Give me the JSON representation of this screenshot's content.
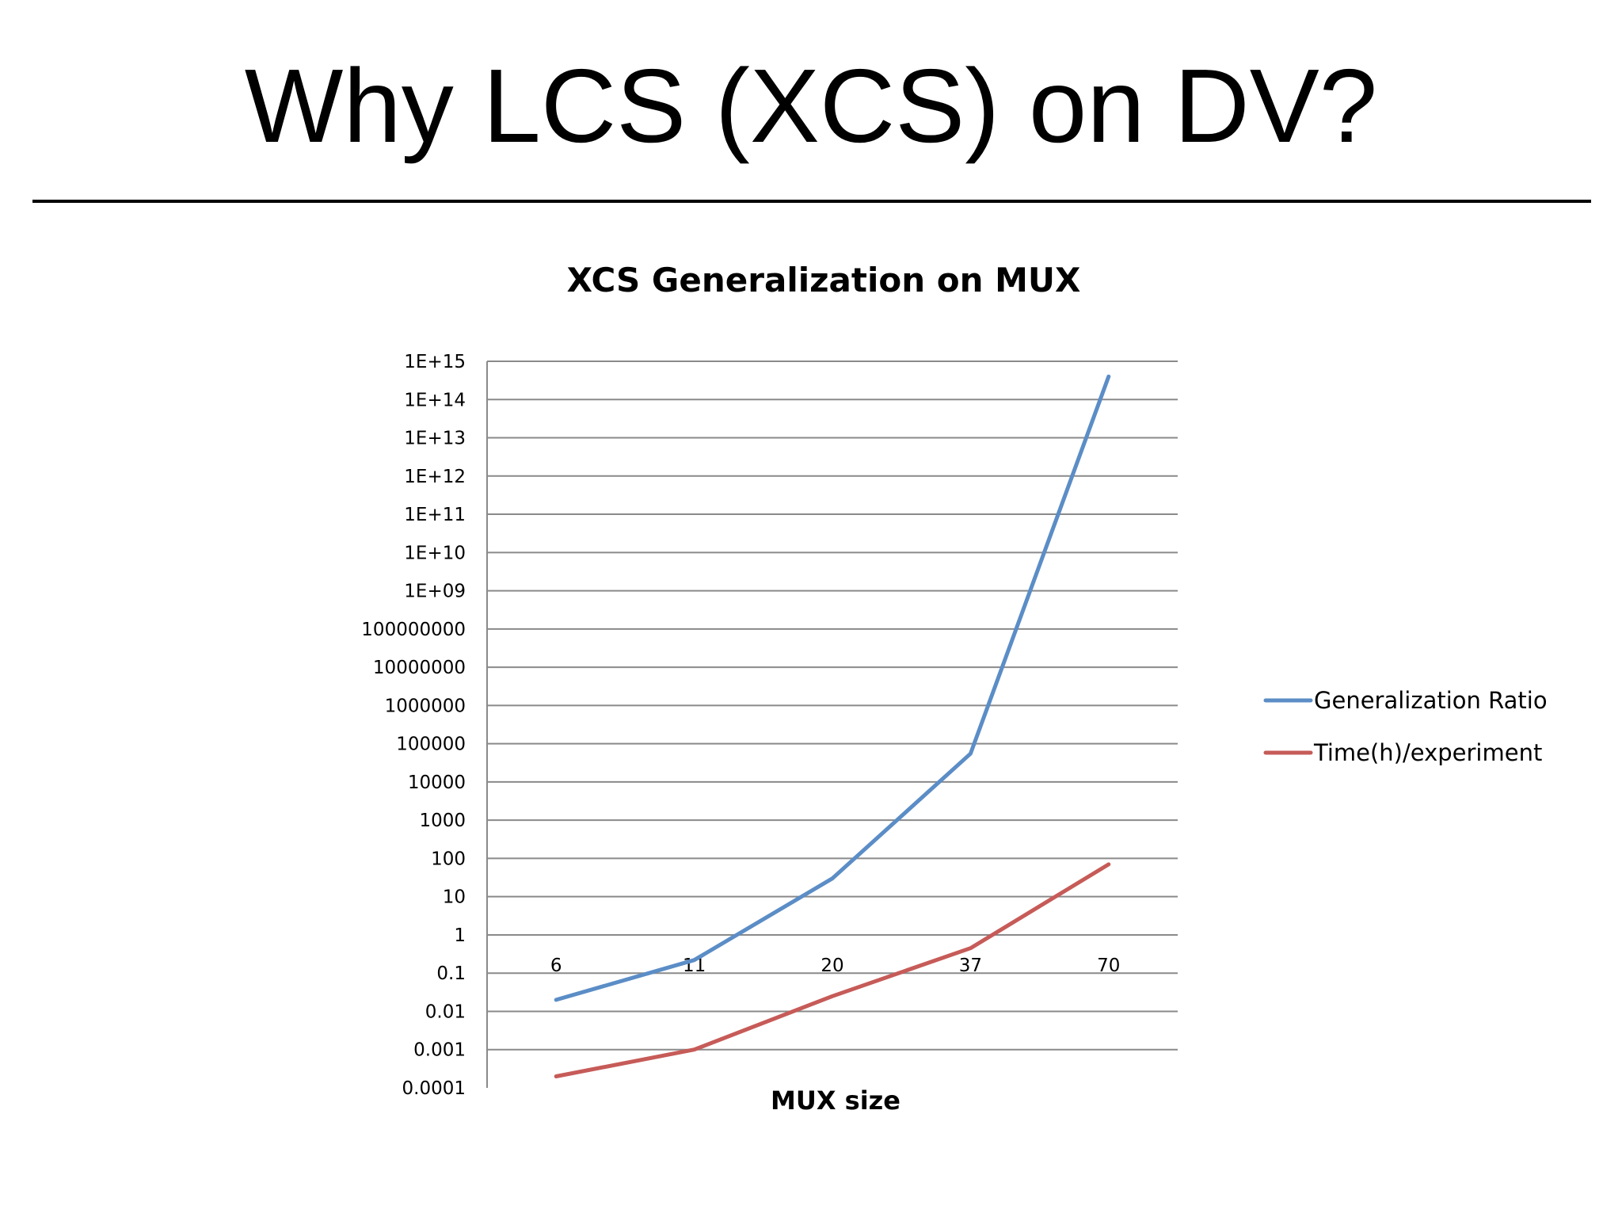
{
  "slide": {
    "title": "Why LCS (XCS) on DV?"
  },
  "chart_data": {
    "type": "line",
    "title": "XCS Generalization on MUX",
    "xlabel": "MUX size",
    "ylabel": "",
    "y_scale": "log",
    "ylim": [
      0.0001,
      1000000000000000.0
    ],
    "grid": true,
    "legend_position": "right",
    "categories": [
      "6",
      "11",
      "20",
      "37",
      "70"
    ],
    "y_tick_labels": [
      "0.0001",
      "0.001",
      "0.01",
      "0.1",
      "1",
      "10",
      "100",
      "1000",
      "10000",
      "100000",
      "1000000",
      "10000000",
      "100000000",
      "1E+09",
      "1E+10",
      "1E+11",
      "1E+12",
      "1E+13",
      "1E+14",
      "1E+15"
    ],
    "series": [
      {
        "name": "Generalization Ratio",
        "color": "#5B8DC6",
        "values": [
          0.02,
          0.22,
          30,
          55000,
          400000000000000.0
        ]
      },
      {
        "name": "Time(h)/experiment",
        "color": "#C65B58",
        "values": [
          0.0002,
          0.001,
          0.025,
          0.45,
          70
        ]
      }
    ]
  }
}
